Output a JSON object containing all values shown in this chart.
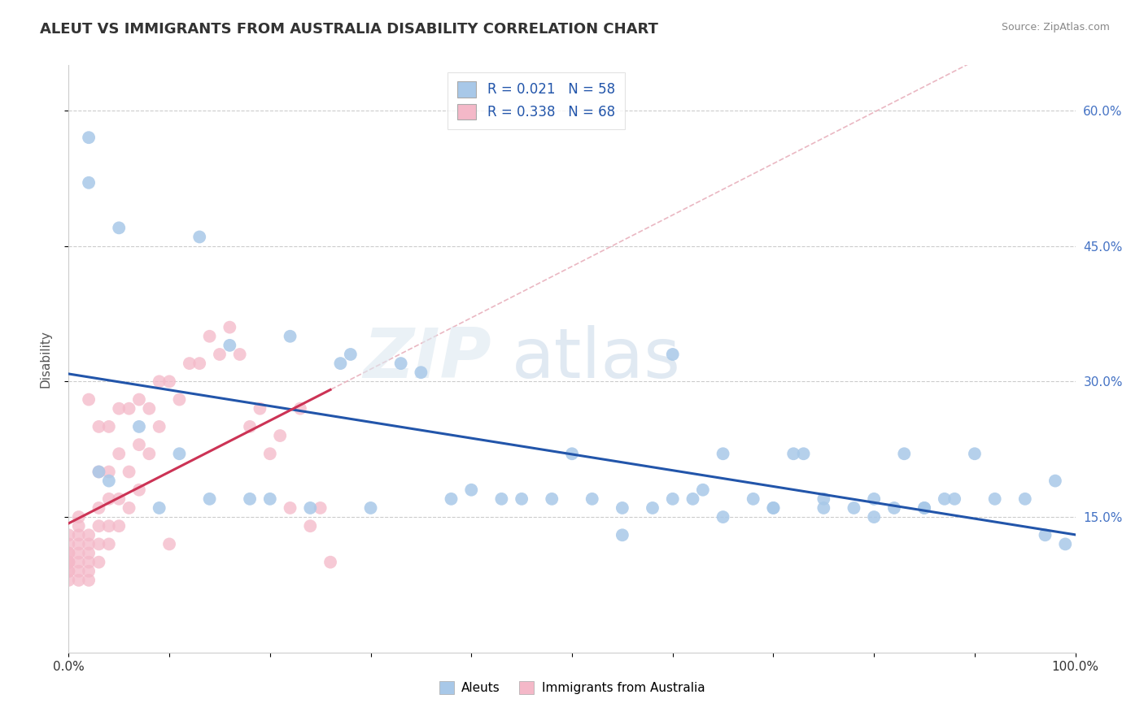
{
  "title": "ALEUT VS IMMIGRANTS FROM AUSTRALIA DISABILITY CORRELATION CHART",
  "source": "Source: ZipAtlas.com",
  "ylabel": "Disability",
  "xlim": [
    0,
    1.0
  ],
  "ylim": [
    0.0,
    0.65
  ],
  "xtick_positions": [
    0.0,
    0.1,
    0.2,
    0.3,
    0.4,
    0.5,
    0.6,
    0.7,
    0.8,
    0.9,
    1.0
  ],
  "ytick_positions": [
    0.15,
    0.3,
    0.45,
    0.6
  ],
  "ytick_labels": [
    "15.0%",
    "30.0%",
    "45.0%",
    "60.0%"
  ],
  "aleuts_R": 0.021,
  "aleuts_N": 58,
  "immigrants_R": 0.338,
  "immigrants_N": 68,
  "aleuts_color": "#a8c8e8",
  "immigrants_color": "#f4b8c8",
  "aleuts_line_color": "#2255aa",
  "immigrants_line_color": "#cc3355",
  "diagonal_color": "#e8b0bc",
  "background_color": "#ffffff",
  "grid_color": "#cccccc",
  "aleuts_x": [
    0.02,
    0.02,
    0.05,
    0.13,
    0.16,
    0.22,
    0.27,
    0.28,
    0.33,
    0.35,
    0.38,
    0.4,
    0.45,
    0.5,
    0.52,
    0.55,
    0.58,
    0.6,
    0.62,
    0.63,
    0.65,
    0.68,
    0.7,
    0.72,
    0.73,
    0.75,
    0.78,
    0.8,
    0.82,
    0.83,
    0.85,
    0.87,
    0.88,
    0.9,
    0.92,
    0.95,
    0.97,
    0.99,
    0.03,
    0.04,
    0.07,
    0.09,
    0.11,
    0.14,
    0.18,
    0.2,
    0.24,
    0.3,
    0.43,
    0.48,
    0.55,
    0.6,
    0.65,
    0.7,
    0.75,
    0.8,
    0.85,
    0.98
  ],
  "aleuts_y": [
    0.57,
    0.52,
    0.47,
    0.46,
    0.34,
    0.35,
    0.32,
    0.33,
    0.32,
    0.31,
    0.17,
    0.18,
    0.17,
    0.22,
    0.17,
    0.13,
    0.16,
    0.33,
    0.17,
    0.18,
    0.22,
    0.17,
    0.16,
    0.22,
    0.22,
    0.17,
    0.16,
    0.15,
    0.16,
    0.22,
    0.16,
    0.17,
    0.17,
    0.22,
    0.17,
    0.17,
    0.13,
    0.12,
    0.2,
    0.19,
    0.25,
    0.16,
    0.22,
    0.17,
    0.17,
    0.17,
    0.16,
    0.16,
    0.17,
    0.17,
    0.16,
    0.17,
    0.15,
    0.16,
    0.16,
    0.17,
    0.16,
    0.19
  ],
  "immigrants_x": [
    0.0,
    0.0,
    0.0,
    0.0,
    0.0,
    0.0,
    0.0,
    0.0,
    0.0,
    0.0,
    0.01,
    0.01,
    0.01,
    0.01,
    0.01,
    0.01,
    0.01,
    0.01,
    0.02,
    0.02,
    0.02,
    0.02,
    0.02,
    0.02,
    0.02,
    0.03,
    0.03,
    0.03,
    0.03,
    0.03,
    0.03,
    0.04,
    0.04,
    0.04,
    0.04,
    0.04,
    0.05,
    0.05,
    0.05,
    0.05,
    0.06,
    0.06,
    0.06,
    0.07,
    0.07,
    0.07,
    0.08,
    0.08,
    0.09,
    0.09,
    0.1,
    0.1,
    0.11,
    0.12,
    0.13,
    0.14,
    0.15,
    0.16,
    0.17,
    0.18,
    0.19,
    0.2,
    0.21,
    0.22,
    0.23,
    0.24,
    0.25,
    0.26
  ],
  "immigrants_y": [
    0.08,
    0.09,
    0.09,
    0.1,
    0.1,
    0.1,
    0.11,
    0.11,
    0.12,
    0.13,
    0.08,
    0.09,
    0.1,
    0.11,
    0.12,
    0.13,
    0.14,
    0.15,
    0.08,
    0.09,
    0.1,
    0.11,
    0.12,
    0.13,
    0.28,
    0.1,
    0.12,
    0.14,
    0.16,
    0.2,
    0.25,
    0.12,
    0.14,
    0.17,
    0.2,
    0.25,
    0.14,
    0.17,
    0.22,
    0.27,
    0.16,
    0.2,
    0.27,
    0.18,
    0.23,
    0.28,
    0.22,
    0.27,
    0.25,
    0.3,
    0.12,
    0.3,
    0.28,
    0.32,
    0.32,
    0.35,
    0.33,
    0.36,
    0.33,
    0.25,
    0.27,
    0.22,
    0.24,
    0.16,
    0.27,
    0.14,
    0.16,
    0.1
  ]
}
